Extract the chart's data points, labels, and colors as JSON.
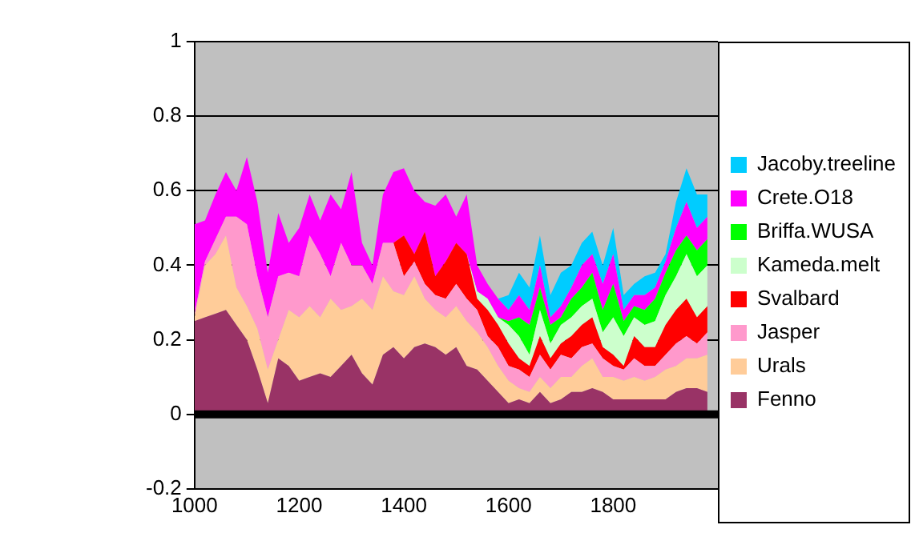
{
  "chart_data": {
    "type": "area",
    "stacked": true,
    "legend": "right",
    "grid": "y",
    "x": [
      1000,
      1020,
      1040,
      1060,
      1080,
      1100,
      1120,
      1140,
      1160,
      1180,
      1200,
      1220,
      1240,
      1260,
      1280,
      1300,
      1320,
      1340,
      1360,
      1380,
      1400,
      1420,
      1440,
      1460,
      1480,
      1500,
      1520,
      1540,
      1560,
      1580,
      1600,
      1620,
      1640,
      1660,
      1680,
      1700,
      1720,
      1740,
      1760,
      1780,
      1800,
      1820,
      1840,
      1860,
      1880,
      1900,
      1920,
      1940,
      1960,
      1980
    ],
    "xlim": [
      1000,
      2000
    ],
    "xticks": [
      1000,
      1200,
      1400,
      1600,
      1800
    ],
    "ylim": [
      -0.2,
      1
    ],
    "yticks": [
      -0.2,
      0,
      0.2,
      0.4,
      0.6,
      0.8,
      1
    ],
    "ref_lines": [
      {
        "axis": "y",
        "value": 0,
        "color": "#000000"
      }
    ],
    "series": [
      {
        "name": "Fenno",
        "color": "#993366",
        "values": [
          0.25,
          0.26,
          0.27,
          0.28,
          0.24,
          0.2,
          0.12,
          0.03,
          0.15,
          0.13,
          0.09,
          0.1,
          0.11,
          0.1,
          0.13,
          0.16,
          0.11,
          0.08,
          0.16,
          0.18,
          0.15,
          0.18,
          0.19,
          0.18,
          0.16,
          0.18,
          0.13,
          0.12,
          0.09,
          0.06,
          0.03,
          0.04,
          0.03,
          0.06,
          0.03,
          0.04,
          0.06,
          0.06,
          0.07,
          0.06,
          0.04,
          0.04,
          0.04,
          0.04,
          0.04,
          0.04,
          0.06,
          0.07,
          0.07,
          0.06
        ]
      },
      {
        "name": "Urals",
        "color": "#ffcc99",
        "values": [
          0.01,
          0.14,
          0.16,
          0.2,
          0.1,
          0.09,
          0.11,
          0.09,
          0.05,
          0.15,
          0.17,
          0.19,
          0.15,
          0.21,
          0.15,
          0.13,
          0.2,
          0.2,
          0.21,
          0.15,
          0.17,
          0.19,
          0.12,
          0.1,
          0.1,
          0.11,
          0.12,
          0.1,
          0.09,
          0.07,
          0.06,
          0.03,
          0.03,
          0.04,
          0.04,
          0.06,
          0.04,
          0.07,
          0.08,
          0.04,
          0.06,
          0.05,
          0.06,
          0.05,
          0.06,
          0.08,
          0.07,
          0.08,
          0.08,
          0.1
        ]
      },
      {
        "name": "Jasper",
        "color": "#ff99cc",
        "values": [
          0.01,
          0.01,
          0.04,
          0.05,
          0.19,
          0.22,
          0.14,
          0.14,
          0.17,
          0.1,
          0.11,
          0.19,
          0.17,
          0.06,
          0.18,
          0.11,
          0.09,
          0.07,
          0.09,
          0.13,
          0.05,
          0.04,
          0.04,
          0.04,
          0.05,
          0.06,
          0.06,
          0.06,
          0.03,
          0.05,
          0.04,
          0.05,
          0.04,
          0.06,
          0.05,
          0.06,
          0.05,
          0.05,
          0.04,
          0.05,
          0.03,
          0.03,
          0.05,
          0.04,
          0.03,
          0.04,
          0.06,
          0.06,
          0.04,
          0.06
        ]
      },
      {
        "name": "Svalbard",
        "color": "#ff0000",
        "values": [
          0,
          0,
          0,
          0,
          0,
          0,
          0,
          0,
          0,
          0,
          0,
          0,
          0,
          0,
          0,
          0,
          0,
          0,
          0,
          0,
          0.11,
          0.02,
          0.14,
          0.05,
          0.1,
          0.11,
          0.12,
          0.03,
          0.07,
          0.06,
          0.06,
          0.03,
          0.03,
          0.05,
          0.03,
          0.03,
          0.06,
          0.06,
          0.07,
          0.03,
          0.03,
          0.01,
          0.06,
          0.05,
          0.05,
          0.08,
          0.09,
          0.1,
          0.07,
          0.07
        ]
      },
      {
        "name": "Kameda.melt",
        "color": "#ccffcc",
        "values": [
          0,
          0,
          0,
          0,
          0,
          0,
          0,
          0,
          0,
          0,
          0,
          0,
          0,
          0,
          0,
          0,
          0,
          0,
          0,
          0,
          0,
          0,
          0,
          0,
          0,
          0,
          0,
          0.02,
          0.03,
          0.02,
          0.05,
          0.06,
          0.03,
          0.07,
          0.04,
          0.05,
          0.05,
          0.05,
          0.05,
          0.04,
          0.1,
          0.08,
          0.05,
          0.06,
          0.07,
          0.08,
          0.09,
          0.12,
          0.11,
          0.11
        ]
      },
      {
        "name": "Briffa.WUSA",
        "color": "#00ff00",
        "values": [
          0,
          0,
          0,
          0,
          0,
          0,
          0,
          0,
          0,
          0,
          0,
          0,
          0,
          0,
          0,
          0,
          0,
          0,
          0,
          0,
          0,
          0,
          0,
          0,
          0,
          0,
          0,
          0,
          0,
          0,
          0.01,
          0.05,
          0.08,
          0.06,
          0.05,
          0.02,
          0.05,
          0.05,
          0.07,
          0.06,
          0.09,
          0.04,
          0.03,
          0.04,
          0.06,
          0.06,
          0.07,
          0.05,
          0.07,
          0.07
        ]
      },
      {
        "name": "Crete.O18",
        "color": "#ff00ff",
        "values": [
          0.24,
          0.11,
          0.12,
          0.12,
          0.07,
          0.18,
          0.2,
          0.12,
          0.17,
          0.08,
          0.13,
          0.11,
          0.09,
          0.22,
          0.09,
          0.25,
          0.06,
          0.05,
          0.13,
          0.19,
          0.18,
          0.17,
          0.08,
          0.19,
          0.18,
          0.07,
          0.16,
          0.07,
          0.04,
          0.05,
          0.03,
          0.06,
          0.04,
          0.06,
          0.02,
          0.03,
          0.03,
          0.06,
          0.05,
          0.07,
          0.08,
          0.03,
          0.03,
          0.04,
          0.03,
          0.03,
          0.06,
          0.09,
          0.06,
          0.06
        ]
      },
      {
        "name": "Jacoby.treeline",
        "color": "#00ccff",
        "values": [
          0,
          0,
          0,
          0,
          0,
          0,
          0,
          0,
          0,
          0,
          0,
          0,
          0,
          0,
          0,
          0,
          0,
          0,
          0,
          0,
          0,
          0,
          0,
          0,
          0,
          0,
          0,
          0,
          0,
          0,
          0.04,
          0.06,
          0.06,
          0.08,
          0.06,
          0.09,
          0.06,
          0.06,
          0.06,
          0.05,
          0.07,
          0.04,
          0.03,
          0.05,
          0.04,
          0.02,
          0.07,
          0.09,
          0.09,
          0.06
        ]
      }
    ]
  }
}
